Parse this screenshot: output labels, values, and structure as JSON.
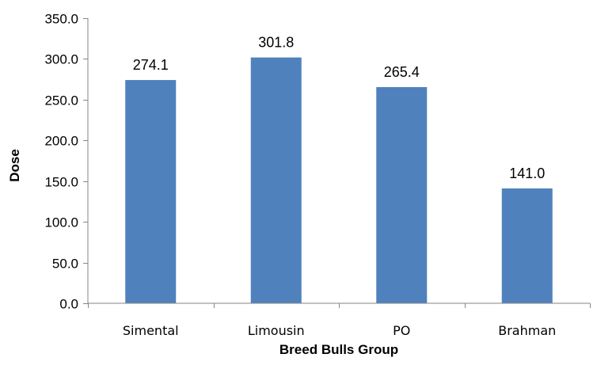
{
  "chart_data": {
    "type": "bar",
    "title": "",
    "categories": [
      "Simental",
      "Limousin",
      "PO",
      "Brahman"
    ],
    "values": [
      274.1,
      301.8,
      265.4,
      141.0
    ],
    "value_labels": [
      "274.1",
      "301.8",
      "265.4",
      "141.0"
    ],
    "xlabel": "Breed Bulls Group",
    "ylabel": "Dose",
    "ylim": [
      0,
      350
    ],
    "yticks": [
      0,
      50,
      100,
      150,
      200,
      250,
      300,
      350
    ],
    "ytick_labels": [
      "0.0",
      "50.0",
      "100.0",
      "150.0",
      "200.0",
      "250.0",
      "300.0",
      "350.0"
    ],
    "grid": false,
    "legend": "none",
    "bar_color": "#4F81BD",
    "axis_color": "#868686"
  }
}
